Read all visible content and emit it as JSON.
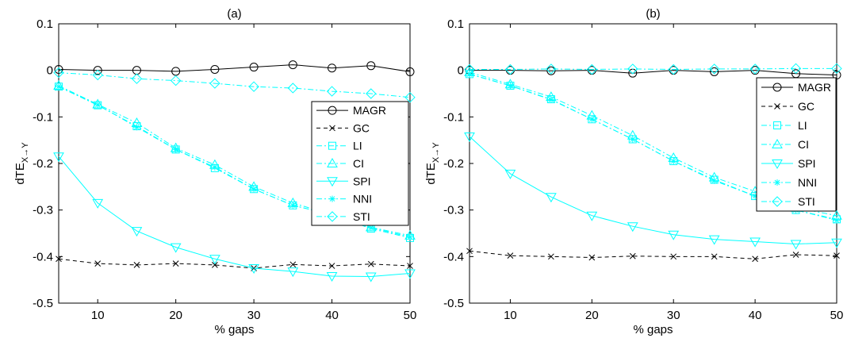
{
  "chart_data": [
    {
      "type": "line",
      "title": "(a)",
      "xlabel": "% gaps",
      "ylabel": "dTE",
      "ylabel_sub": "X→Y",
      "xlim": [
        5,
        50
      ],
      "ylim": [
        -0.5,
        0.1
      ],
      "xticks": [
        10,
        20,
        30,
        40,
        50
      ],
      "yticks": [
        -0.5,
        -0.4,
        -0.3,
        -0.2,
        -0.1,
        0,
        0.1
      ],
      "ytick_labels": [
        "-0.5",
        "-0.4",
        "-0.3",
        "-0.2",
        "-0.1",
        "0",
        "0.1"
      ],
      "grid": false,
      "legend_position": "right",
      "x": [
        5,
        10,
        15,
        20,
        25,
        30,
        35,
        40,
        45,
        50
      ],
      "series": [
        {
          "name": "MAGR",
          "color": "#000000",
          "dash": "solid",
          "marker": "circle",
          "values": [
            0.002,
            0.0,
            0.0,
            -0.002,
            0.002,
            0.007,
            0.012,
            0.005,
            0.01,
            -0.003
          ]
        },
        {
          "name": "GC",
          "color": "#000000",
          "dash": "dashed",
          "marker": "x",
          "values": [
            -0.405,
            -0.415,
            -0.418,
            -0.415,
            -0.418,
            -0.425,
            -0.417,
            -0.42,
            -0.416,
            -0.42
          ]
        },
        {
          "name": "LI",
          "color": "#00ffff",
          "dash": "dashdot",
          "marker": "square",
          "values": [
            -0.035,
            -0.075,
            -0.12,
            -0.17,
            -0.21,
            -0.255,
            -0.29,
            -0.31,
            -0.34,
            -0.36
          ]
        },
        {
          "name": "CI",
          "color": "#00ffff",
          "dash": "dashdot",
          "marker": "triangle-up",
          "values": [
            -0.033,
            -0.073,
            -0.113,
            -0.167,
            -0.203,
            -0.25,
            -0.285,
            -0.31,
            -0.337,
            -0.355
          ]
        },
        {
          "name": "SPI",
          "color": "#00ffff",
          "dash": "solid",
          "marker": "triangle-down",
          "values": [
            -0.185,
            -0.285,
            -0.345,
            -0.38,
            -0.405,
            -0.425,
            -0.432,
            -0.442,
            -0.443,
            -0.436
          ]
        },
        {
          "name": "NNI",
          "color": "#00ffff",
          "dash": "dashdot",
          "marker": "star",
          "values": [
            -0.035,
            -0.074,
            -0.122,
            -0.17,
            -0.208,
            -0.255,
            -0.29,
            -0.31,
            -0.338,
            -0.358
          ]
        },
        {
          "name": "STI",
          "color": "#00ffff",
          "dash": "dashdot",
          "marker": "diamond",
          "values": [
            -0.005,
            -0.01,
            -0.018,
            -0.022,
            -0.028,
            -0.035,
            -0.038,
            -0.045,
            -0.05,
            -0.058
          ]
        }
      ]
    },
    {
      "type": "line",
      "title": "(b)",
      "xlabel": "% gaps",
      "ylabel": "dTE",
      "ylabel_sub": "X→Y",
      "xlim": [
        5,
        50
      ],
      "ylim": [
        -0.5,
        0.1
      ],
      "xticks": [
        10,
        20,
        30,
        40,
        50
      ],
      "yticks": [
        -0.5,
        -0.4,
        -0.3,
        -0.2,
        -0.1,
        0,
        0.1
      ],
      "ytick_labels": [
        "-0.5",
        "-0.4",
        "-0.3",
        "-0.2",
        "-0.1",
        "0",
        "0.1"
      ],
      "grid": false,
      "legend_position": "right",
      "x": [
        5,
        10,
        15,
        20,
        25,
        30,
        35,
        40,
        45,
        50
      ],
      "series": [
        {
          "name": "MAGR",
          "color": "#000000",
          "dash": "solid",
          "marker": "circle",
          "values": [
            0.0,
            0.0,
            -0.001,
            0.0,
            -0.006,
            0.0,
            -0.003,
            0.0,
            -0.007,
            -0.01
          ]
        },
        {
          "name": "GC",
          "color": "#000000",
          "dash": "dashed",
          "marker": "x",
          "values": [
            -0.388,
            -0.398,
            -0.4,
            -0.402,
            -0.399,
            -0.4,
            -0.4,
            -0.405,
            -0.396,
            -0.398
          ]
        },
        {
          "name": "LI",
          "color": "#00ffff",
          "dash": "dashdot",
          "marker": "square",
          "values": [
            -0.008,
            -0.033,
            -0.062,
            -0.105,
            -0.148,
            -0.195,
            -0.235,
            -0.27,
            -0.3,
            -0.32
          ]
        },
        {
          "name": "CI",
          "color": "#00ffff",
          "dash": "dashdot",
          "marker": "triangle-up",
          "values": [
            -0.004,
            -0.03,
            -0.057,
            -0.097,
            -0.14,
            -0.188,
            -0.23,
            -0.26,
            -0.295,
            -0.312
          ]
        },
        {
          "name": "SPI",
          "color": "#00ffff",
          "dash": "solid",
          "marker": "triangle-down",
          "values": [
            -0.142,
            -0.222,
            -0.272,
            -0.312,
            -0.335,
            -0.353,
            -0.363,
            -0.368,
            -0.373,
            -0.37
          ]
        },
        {
          "name": "NNI",
          "color": "#00ffff",
          "dash": "dashdot",
          "marker": "star",
          "values": [
            -0.008,
            -0.033,
            -0.063,
            -0.105,
            -0.148,
            -0.195,
            -0.237,
            -0.27,
            -0.3,
            -0.322
          ]
        },
        {
          "name": "STI",
          "color": "#00ffff",
          "dash": "dashdot",
          "marker": "diamond",
          "values": [
            0.002,
            0.002,
            0.003,
            0.002,
            0.003,
            0.002,
            0.003,
            0.003,
            0.004,
            0.004
          ]
        }
      ]
    }
  ]
}
